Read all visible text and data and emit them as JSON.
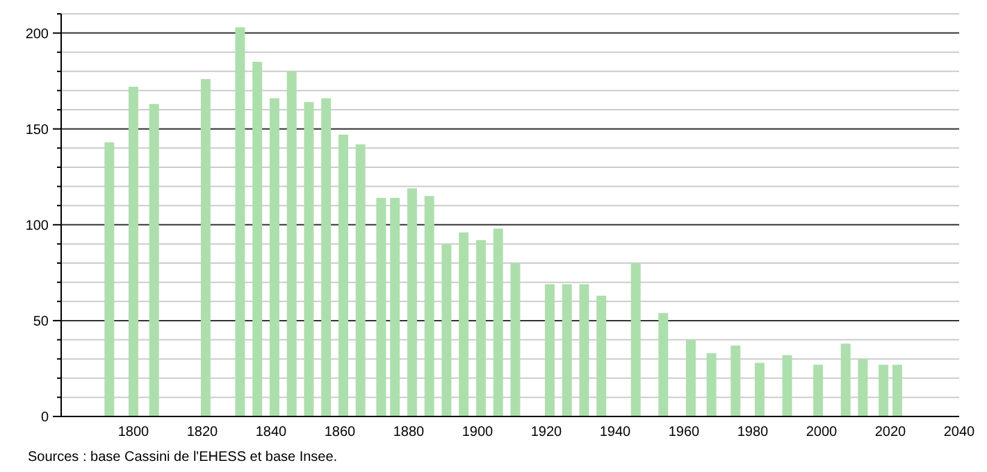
{
  "chart_data": {
    "type": "bar",
    "x": [
      1793,
      1800,
      1806,
      1821,
      1831,
      1836,
      1841,
      1846,
      1851,
      1856,
      1861,
      1866,
      1872,
      1876,
      1881,
      1886,
      1891,
      1896,
      1901,
      1906,
      1911,
      1921,
      1926,
      1931,
      1936,
      1946,
      1954,
      1962,
      1968,
      1975,
      1982,
      1990,
      1999,
      2007,
      2012,
      2018,
      2022
    ],
    "values": [
      143,
      172,
      163,
      176,
      203,
      185,
      166,
      180,
      164,
      166,
      147,
      142,
      114,
      114,
      119,
      115,
      90,
      96,
      92,
      98,
      80,
      69,
      69,
      69,
      63,
      80,
      54,
      40,
      33,
      37,
      28,
      32,
      27,
      38,
      30,
      27,
      27
    ],
    "color": "#addfad",
    "xlim": [
      1779,
      2040
    ],
    "xticks": [
      1800,
      1820,
      1840,
      1860,
      1880,
      1900,
      1920,
      1940,
      1960,
      1980,
      2000,
      2020,
      2040
    ],
    "ylim": [
      0,
      210
    ],
    "yticks": [
      0,
      {
        "value": 10,
        "label": null
      },
      {
        "value": 20,
        "label": null
      },
      {
        "value": 30,
        "label": null
      },
      {
        "value": 40,
        "label": null
      },
      50,
      {
        "value": 60,
        "label": null
      },
      {
        "value": 70,
        "label": null
      },
      {
        "value": 80,
        "label": null
      },
      {
        "value": 90,
        "label": null
      },
      100,
      {
        "value": 110,
        "label": null
      },
      {
        "value": 120,
        "label": null
      },
      {
        "value": 130,
        "label": null
      },
      {
        "value": 140,
        "label": null
      },
      150,
      {
        "value": 160,
        "label": null
      },
      {
        "value": 170,
        "label": null
      },
      {
        "value": 180,
        "label": null
      },
      {
        "value": 190,
        "label": null
      },
      200,
      {
        "value": 210,
        "label": null
      }
    ],
    "grid": "y",
    "annotations": [
      "Sources : base Cassini de l'EHESS et base Insee."
    ]
  }
}
